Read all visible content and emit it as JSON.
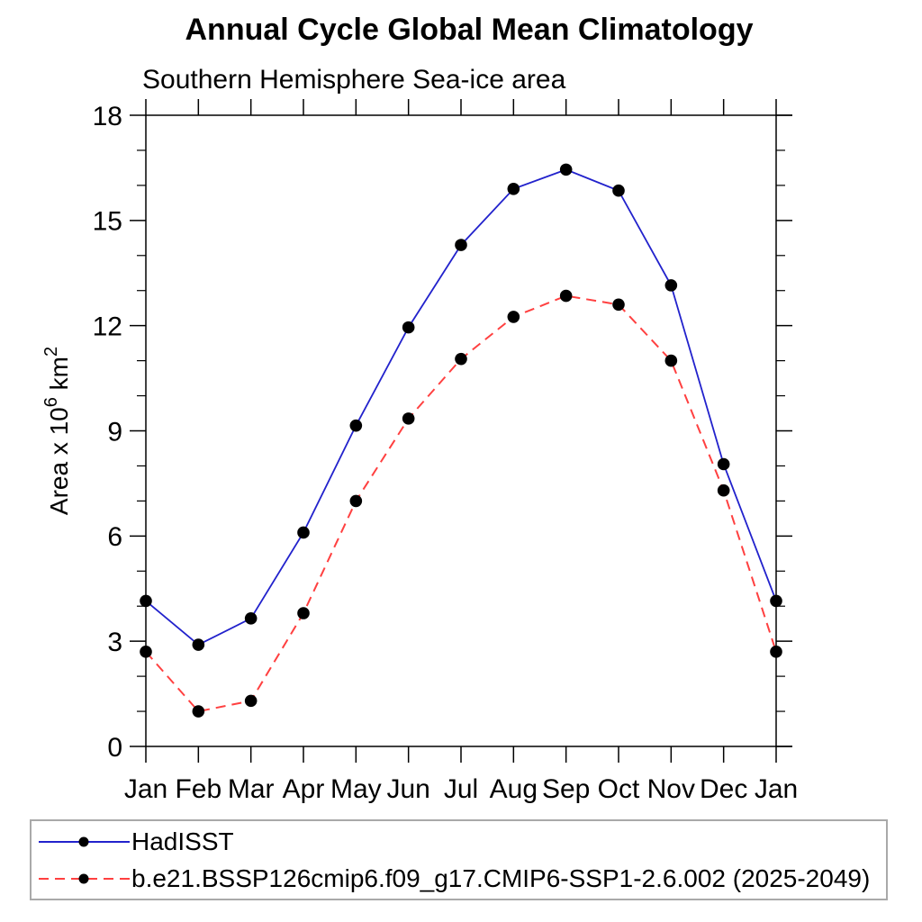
{
  "title": "Annual Cycle Global Mean Climatology",
  "subtitle": "Southern Hemisphere Sea-ice area",
  "colors": {
    "hadisst_line": "#2222cc",
    "model_line": "#ff4040",
    "marker": "#000000",
    "axis": "#000000",
    "legend_border": "#a9a9a9"
  },
  "chart_data": {
    "type": "line",
    "title": "Annual Cycle Global Mean Climatology",
    "subtitle": "Southern Hemisphere Sea-ice area",
    "categories": [
      "Jan",
      "Feb",
      "Mar",
      "Apr",
      "May",
      "Jun",
      "Jul",
      "Aug",
      "Sep",
      "Oct",
      "Nov",
      "Dec",
      "Jan"
    ],
    "xlabel": "",
    "ylabel": "Area x 10^6 km^2",
    "ylabel_segments": [
      {
        "t": "Area x 10",
        "sup": false
      },
      {
        "t": "6",
        "sup": true
      },
      {
        "t": " km",
        "sup": false
      },
      {
        "t": "2",
        "sup": true
      }
    ],
    "ylim": [
      0,
      18
    ],
    "yticks": [
      0,
      3,
      6,
      9,
      12,
      15,
      18
    ],
    "y_minor_interval": 1,
    "grid": false,
    "legend_position": "bottom-left",
    "series": [
      {
        "key": "hadisst",
        "name": "HadISST",
        "color": "#2222cc",
        "marker_color": "#000000",
        "style": "solid",
        "marker": "circle",
        "values": [
          4.15,
          2.9,
          3.65,
          6.1,
          9.15,
          11.95,
          14.3,
          15.9,
          16.45,
          15.85,
          13.15,
          8.05,
          4.15
        ]
      },
      {
        "key": "cesm-ssp126",
        "name": "b.e21.BSSP126cmip6.f09_g17.CMIP6-SSP1-2.6.002 (2025-2049)",
        "color": "#ff4040",
        "marker_color": "#000000",
        "style": "dashed",
        "marker": "circle",
        "values": [
          2.7,
          1.0,
          1.3,
          3.8,
          7.0,
          9.35,
          11.05,
          12.25,
          12.85,
          12.6,
          11.0,
          7.3,
          2.7
        ]
      }
    ]
  }
}
